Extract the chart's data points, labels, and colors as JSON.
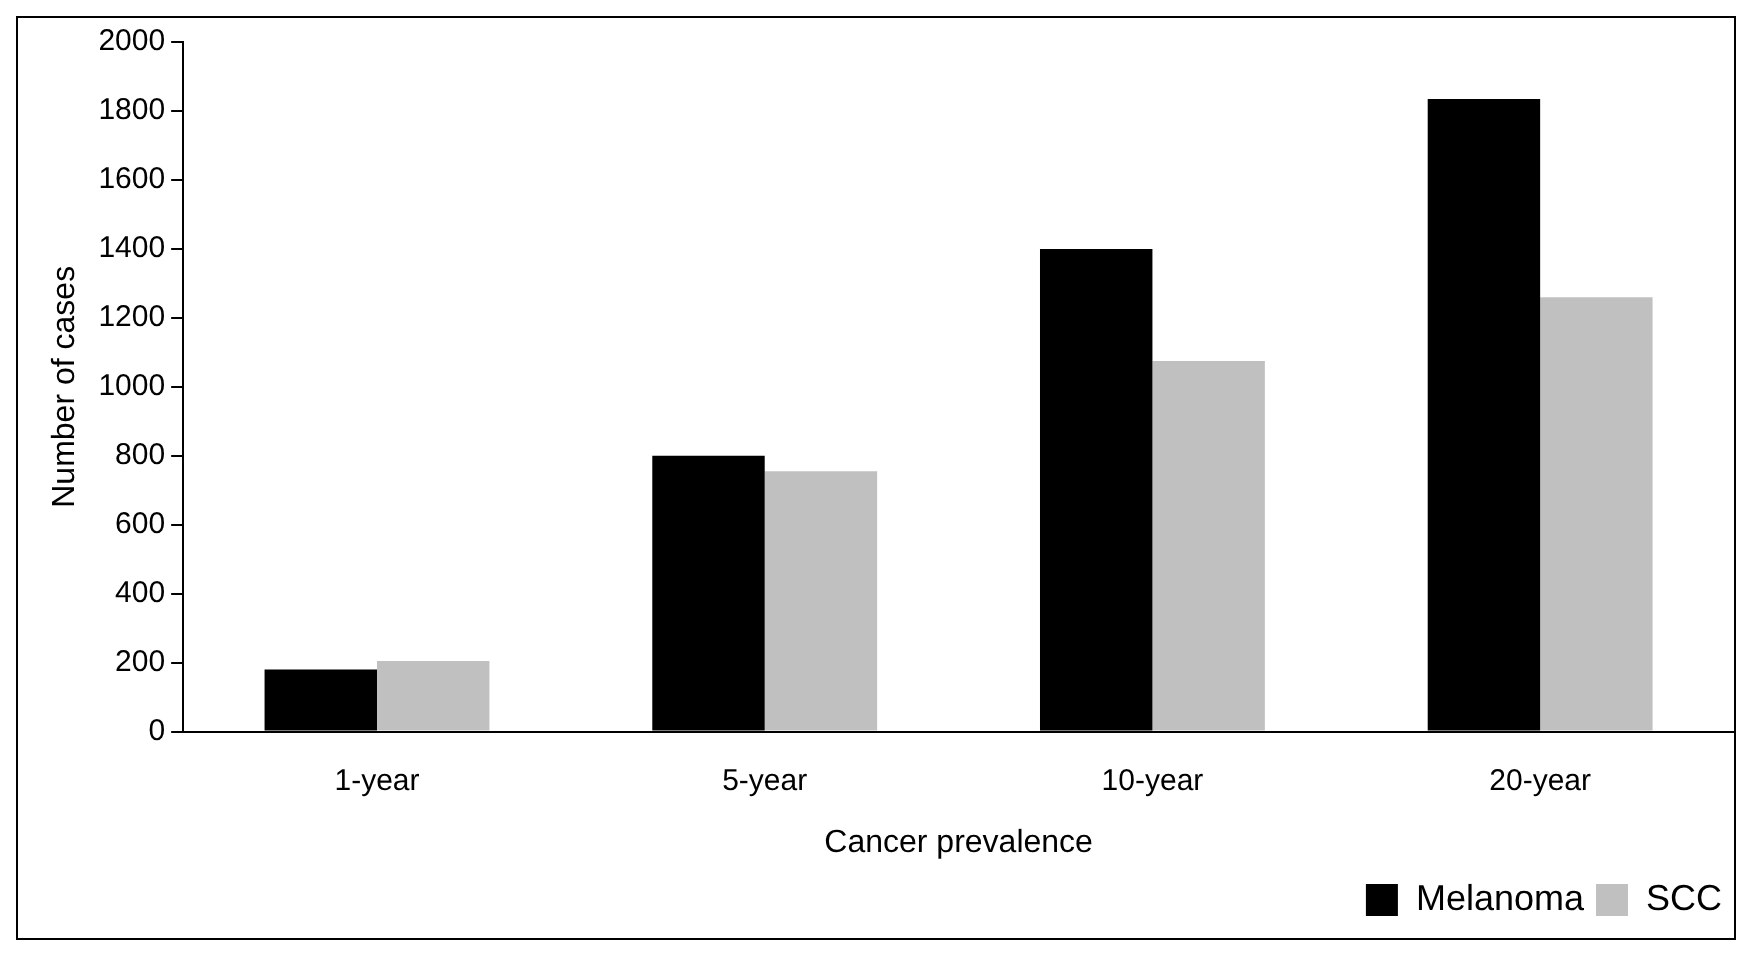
{
  "chart_data": {
    "type": "bar",
    "xlabel": "Cancer prevalence",
    "ylabel": "Number of cases",
    "categories": [
      "1-year",
      "5-year",
      "10-year",
      "20-year"
    ],
    "series": [
      {
        "name": "Melanoma",
        "color": "#000000",
        "values": [
          180,
          800,
          1400,
          1835
        ]
      },
      {
        "name": "SCC",
        "color": "#c0c0c0",
        "values": [
          205,
          755,
          1075,
          1260
        ]
      }
    ],
    "ylim": [
      0,
      2000
    ],
    "yticks": [
      0,
      200,
      400,
      600,
      800,
      1000,
      1200,
      1400,
      1600,
      1800,
      2000
    ],
    "grid": false,
    "legend": "bottom right"
  }
}
